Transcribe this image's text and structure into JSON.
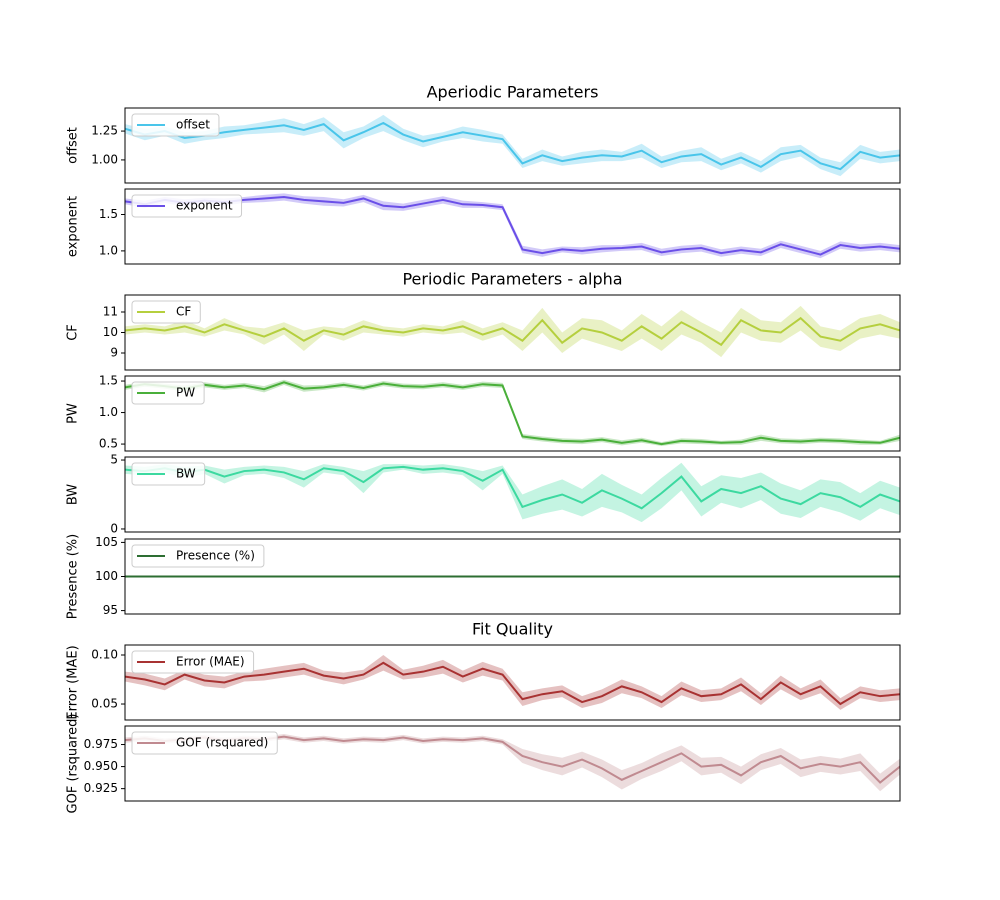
{
  "chart_data": [
    {
      "type": "line",
      "title": "Aperiodic Parameters",
      "ylabel": "offset",
      "legend": "upper left",
      "ylim": [
        0.8,
        1.45
      ],
      "yticks": [
        {
          "value": 1.0,
          "label": "1.00"
        },
        1.25
      ],
      "series": [
        {
          "name": "offset",
          "color": "#49c5ea",
          "values": [
            1.27,
            1.22,
            1.25,
            1.19,
            1.21,
            1.24,
            1.26,
            1.28,
            1.3,
            1.26,
            1.31,
            1.17,
            1.24,
            1.32,
            1.22,
            1.16,
            1.2,
            1.24,
            1.21,
            1.18,
            0.97,
            1.04,
            0.99,
            1.02,
            1.04,
            1.03,
            1.08,
            0.98,
            1.03,
            1.05,
            0.96,
            1.02,
            0.94,
            1.05,
            1.08,
            0.97,
            0.92,
            1.07,
            1.02,
            1.04
          ],
          "errors": [
            0.04,
            0.05,
            0.04,
            0.05,
            0.04,
            0.05,
            0.04,
            0.05,
            0.06,
            0.05,
            0.06,
            0.07,
            0.05,
            0.07,
            0.05,
            0.05,
            0.04,
            0.05,
            0.05,
            0.04,
            0.04,
            0.05,
            0.04,
            0.05,
            0.05,
            0.04,
            0.06,
            0.05,
            0.05,
            0.06,
            0.05,
            0.05,
            0.05,
            0.06,
            0.05,
            0.05,
            0.06,
            0.06,
            0.05,
            0.05
          ]
        }
      ]
    },
    {
      "type": "line",
      "ylabel": "exponent",
      "legend": "upper left",
      "ylim": [
        0.82,
        1.85
      ],
      "yticks": [
        {
          "value": 1.0,
          "label": "1.0"
        },
        1.5
      ],
      "series": [
        {
          "name": "exponent",
          "color": "#6a4fe8",
          "values": [
            1.68,
            1.64,
            1.7,
            1.66,
            1.69,
            1.67,
            1.7,
            1.72,
            1.74,
            1.7,
            1.68,
            1.66,
            1.72,
            1.62,
            1.6,
            1.65,
            1.7,
            1.64,
            1.63,
            1.6,
            1.02,
            0.97,
            1.02,
            1.0,
            1.03,
            1.04,
            1.06,
            0.98,
            1.02,
            1.04,
            0.97,
            1.01,
            0.98,
            1.09,
            1.02,
            0.95,
            1.08,
            1.04,
            1.06,
            1.03
          ],
          "errors": [
            0.04,
            0.05,
            0.04,
            0.05,
            0.04,
            0.05,
            0.04,
            0.05,
            0.05,
            0.05,
            0.06,
            0.05,
            0.05,
            0.06,
            0.05,
            0.05,
            0.05,
            0.05,
            0.04,
            0.04,
            0.05,
            0.05,
            0.04,
            0.05,
            0.05,
            0.04,
            0.05,
            0.05,
            0.05,
            0.05,
            0.05,
            0.05,
            0.05,
            0.05,
            0.05,
            0.05,
            0.05,
            0.05,
            0.05,
            0.05
          ]
        }
      ]
    },
    {
      "type": "line",
      "title": "Periodic Parameters - alpha",
      "ylabel": "CF",
      "legend": "upper left",
      "ylim": [
        8.17,
        11.83
      ],
      "yticks": [
        9,
        10,
        11
      ],
      "series": [
        {
          "name": "CF",
          "color": "#b5cf3e",
          "values": [
            10.1,
            10.2,
            10.1,
            10.3,
            10.0,
            10.4,
            10.1,
            9.8,
            10.2,
            9.6,
            10.1,
            9.9,
            10.3,
            10.1,
            10.0,
            10.2,
            10.1,
            10.3,
            9.9,
            10.2,
            9.6,
            10.6,
            9.5,
            10.2,
            10.0,
            9.6,
            10.3,
            9.7,
            10.5,
            10.0,
            9.4,
            10.6,
            10.1,
            10.0,
            10.7,
            9.8,
            9.6,
            10.2,
            10.4,
            10.1
          ],
          "errors": [
            0.2,
            0.2,
            0.2,
            0.3,
            0.2,
            0.3,
            0.2,
            0.4,
            0.3,
            0.5,
            0.2,
            0.3,
            0.3,
            0.2,
            0.2,
            0.2,
            0.2,
            0.3,
            0.3,
            0.3,
            0.5,
            0.6,
            0.5,
            0.5,
            0.6,
            0.5,
            0.6,
            0.6,
            0.6,
            0.5,
            0.6,
            0.6,
            0.5,
            0.5,
            0.6,
            0.5,
            0.5,
            0.5,
            0.5,
            0.4
          ]
        }
      ]
    },
    {
      "type": "line",
      "ylabel": "PW",
      "legend": "upper left",
      "ylim": [
        0.39,
        1.58
      ],
      "yticks": [
        0.5,
        {
          "value": 1.0,
          "label": "1.0"
        },
        1.5
      ],
      "series": [
        {
          "name": "PW",
          "color": "#4aaf3a",
          "values": [
            1.4,
            1.45,
            1.42,
            1.38,
            1.44,
            1.4,
            1.43,
            1.37,
            1.48,
            1.38,
            1.4,
            1.44,
            1.39,
            1.46,
            1.42,
            1.41,
            1.44,
            1.4,
            1.45,
            1.43,
            0.62,
            0.58,
            0.55,
            0.54,
            0.57,
            0.52,
            0.56,
            0.5,
            0.55,
            0.54,
            0.52,
            0.53,
            0.6,
            0.55,
            0.54,
            0.56,
            0.55,
            0.53,
            0.52,
            0.6
          ],
          "errors": [
            0.04,
            0.04,
            0.04,
            0.05,
            0.04,
            0.04,
            0.04,
            0.05,
            0.04,
            0.05,
            0.04,
            0.04,
            0.04,
            0.04,
            0.04,
            0.04,
            0.04,
            0.04,
            0.04,
            0.04,
            0.04,
            0.04,
            0.04,
            0.04,
            0.04,
            0.04,
            0.04,
            0.03,
            0.04,
            0.04,
            0.03,
            0.04,
            0.05,
            0.04,
            0.04,
            0.04,
            0.04,
            0.04,
            0.03,
            0.05
          ]
        }
      ]
    },
    {
      "type": "line",
      "ylabel": "BW",
      "legend": "upper left",
      "ylim": [
        -0.22,
        5.22
      ],
      "yticks": [
        0,
        5
      ],
      "series": [
        {
          "name": "BW",
          "color": "#3cd9a0",
          "values": [
            4.3,
            4.2,
            4.4,
            4.1,
            4.3,
            3.8,
            4.2,
            4.3,
            4.1,
            3.6,
            4.4,
            4.2,
            3.4,
            4.4,
            4.5,
            4.3,
            4.4,
            4.2,
            3.5,
            4.3,
            1.6,
            2.1,
            2.5,
            1.9,
            2.8,
            2.2,
            1.5,
            2.6,
            3.8,
            2.0,
            2.9,
            2.6,
            3.1,
            2.2,
            1.8,
            2.6,
            2.3,
            1.6,
            2.5,
            2.0
          ],
          "errors": [
            0.3,
            0.3,
            0.3,
            0.4,
            0.3,
            0.5,
            0.3,
            0.3,
            0.4,
            0.6,
            0.3,
            0.3,
            0.8,
            0.3,
            0.2,
            0.3,
            0.3,
            0.3,
            0.7,
            0.3,
            0.9,
            1.0,
            1.1,
            1.0,
            1.2,
            1.0,
            1.0,
            1.1,
            1.0,
            1.1,
            1.0,
            1.1,
            1.0,
            1.1,
            1.0,
            1.0,
            1.1,
            1.0,
            1.0,
            1.0
          ]
        }
      ]
    },
    {
      "type": "line",
      "ylabel": "Presence (%)",
      "legend": "upper left",
      "ylim": [
        94.5,
        105.5
      ],
      "yticks": [
        95,
        100,
        105
      ],
      "series": [
        {
          "name": "Presence (%)",
          "color": "#2d6e32",
          "values": [
            100,
            100,
            100,
            100,
            100,
            100,
            100,
            100,
            100,
            100,
            100,
            100,
            100,
            100,
            100,
            100,
            100,
            100,
            100,
            100,
            100,
            100,
            100,
            100,
            100,
            100,
            100,
            100,
            100,
            100,
            100,
            100,
            100,
            100,
            100,
            100,
            100,
            100,
            100,
            100
          ],
          "errors": [
            0,
            0,
            0,
            0,
            0,
            0,
            0,
            0,
            0,
            0,
            0,
            0,
            0,
            0,
            0,
            0,
            0,
            0,
            0,
            0,
            0,
            0,
            0,
            0,
            0,
            0,
            0,
            0,
            0,
            0,
            0,
            0,
            0,
            0,
            0,
            0,
            0,
            0,
            0,
            0
          ]
        }
      ]
    },
    {
      "type": "line",
      "title": "Fit Quality",
      "ylabel": "Error (MAE)",
      "legend": "upper left",
      "ylim": [
        0.0337,
        0.1102
      ],
      "yticks": [
        0.05,
        {
          "value": 0.1,
          "label": "0.10"
        }
      ],
      "series": [
        {
          "name": "Error (MAE)",
          "color": "#a83232",
          "values": [
            0.078,
            0.075,
            0.07,
            0.08,
            0.074,
            0.072,
            0.078,
            0.08,
            0.083,
            0.086,
            0.079,
            0.076,
            0.08,
            0.092,
            0.08,
            0.083,
            0.088,
            0.078,
            0.086,
            0.08,
            0.055,
            0.06,
            0.063,
            0.052,
            0.058,
            0.068,
            0.062,
            0.052,
            0.066,
            0.058,
            0.06,
            0.07,
            0.055,
            0.072,
            0.06,
            0.068,
            0.05,
            0.062,
            0.058,
            0.06
          ],
          "errors": [
            0.005,
            0.006,
            0.006,
            0.005,
            0.006,
            0.006,
            0.005,
            0.006,
            0.006,
            0.006,
            0.005,
            0.006,
            0.005,
            0.008,
            0.005,
            0.006,
            0.007,
            0.006,
            0.007,
            0.006,
            0.007,
            0.006,
            0.006,
            0.006,
            0.007,
            0.007,
            0.006,
            0.006,
            0.007,
            0.006,
            0.006,
            0.007,
            0.006,
            0.007,
            0.006,
            0.007,
            0.006,
            0.006,
            0.006,
            0.006
          ]
        }
      ]
    },
    {
      "type": "line",
      "ylabel": "GOF (rsquared)",
      "legend": "upper left",
      "ylim": [
        0.911,
        0.996
      ],
      "yticks": [
        0.925,
        {
          "value": 0.95,
          "label": "0.950"
        },
        0.975
      ],
      "series": [
        {
          "name": "GOF (rsquared)",
          "color": "#c08a90",
          "values": [
            0.98,
            0.982,
            0.979,
            0.981,
            0.983,
            0.98,
            0.982,
            0.981,
            0.984,
            0.98,
            0.982,
            0.979,
            0.981,
            0.98,
            0.983,
            0.979,
            0.981,
            0.98,
            0.982,
            0.978,
            0.962,
            0.955,
            0.95,
            0.958,
            0.948,
            0.935,
            0.945,
            0.955,
            0.965,
            0.95,
            0.952,
            0.94,
            0.955,
            0.962,
            0.948,
            0.953,
            0.95,
            0.955,
            0.932,
            0.95
          ],
          "errors": [
            0.003,
            0.003,
            0.003,
            0.003,
            0.003,
            0.003,
            0.003,
            0.003,
            0.003,
            0.003,
            0.003,
            0.003,
            0.003,
            0.003,
            0.003,
            0.003,
            0.003,
            0.003,
            0.003,
            0.003,
            0.008,
            0.009,
            0.01,
            0.009,
            0.01,
            0.011,
            0.009,
            0.01,
            0.009,
            0.01,
            0.009,
            0.01,
            0.009,
            0.009,
            0.01,
            0.009,
            0.009,
            0.01,
            0.01,
            0.009
          ]
        }
      ]
    }
  ]
}
